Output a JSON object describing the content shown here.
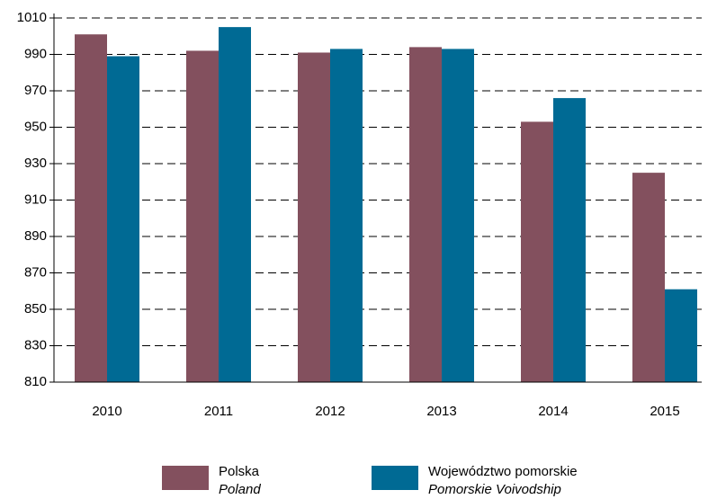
{
  "chart_data": {
    "type": "bar",
    "categories": [
      "2010",
      "2011",
      "2012",
      "2013",
      "2014",
      "2015"
    ],
    "series": [
      {
        "name": "Polska",
        "name_en": "Poland",
        "color": "#83505e",
        "values": [
          1001,
          992,
          991,
          994,
          953,
          925
        ]
      },
      {
        "name": "Województwo pomorskie",
        "name_en": "Pomorskie Voivodship",
        "color": "#006a94",
        "values": [
          989,
          1005,
          993,
          993,
          966,
          861
        ]
      }
    ],
    "ylim": [
      810,
      1010
    ],
    "yticks": [
      810,
      830,
      850,
      870,
      890,
      910,
      930,
      950,
      970,
      990,
      1010
    ],
    "grid": true
  }
}
